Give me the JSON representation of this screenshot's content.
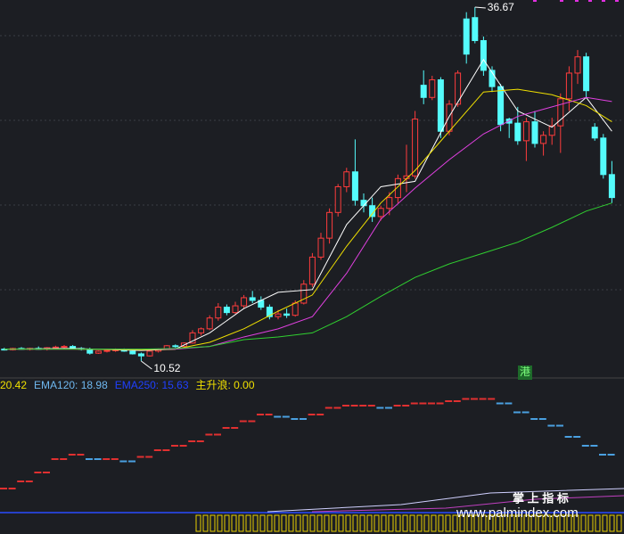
{
  "chart_data": {
    "type": "candlestick",
    "ylim": [
      9.53,
      37.2
    ],
    "ohlc": [
      [
        11.4,
        11.5,
        11.3,
        11.35
      ],
      [
        11.35,
        11.5,
        11.3,
        11.45
      ],
      [
        11.45,
        11.55,
        11.35,
        11.4
      ],
      [
        11.4,
        11.5,
        11.3,
        11.45
      ],
      [
        11.45,
        11.6,
        11.35,
        11.4
      ],
      [
        11.4,
        11.55,
        11.3,
        11.5
      ],
      [
        11.5,
        11.65,
        11.4,
        11.55
      ],
      [
        11.55,
        11.7,
        11.45,
        11.6
      ],
      [
        11.6,
        11.7,
        11.4,
        11.45
      ],
      [
        11.45,
        11.55,
        11.3,
        11.4
      ],
      [
        11.4,
        11.5,
        11.0,
        11.1
      ],
      [
        11.1,
        11.3,
        11.05,
        11.25
      ],
      [
        11.25,
        11.4,
        11.15,
        11.3
      ],
      [
        11.3,
        11.45,
        11.2,
        11.35
      ],
      [
        11.35,
        11.45,
        11.2,
        11.25
      ],
      [
        11.25,
        11.3,
        11.0,
        11.05
      ],
      [
        11.05,
        11.15,
        10.52,
        10.9
      ],
      [
        10.9,
        11.3,
        10.85,
        11.25
      ],
      [
        11.25,
        11.45,
        11.15,
        11.4
      ],
      [
        11.4,
        11.7,
        11.35,
        11.65
      ],
      [
        11.65,
        11.75,
        11.5,
        11.6
      ],
      [
        11.6,
        11.9,
        11.55,
        11.85
      ],
      [
        11.85,
        12.8,
        11.8,
        12.6
      ],
      [
        12.6,
        13.0,
        12.4,
        12.9
      ],
      [
        12.9,
        13.9,
        12.8,
        13.7
      ],
      [
        13.7,
        14.8,
        13.5,
        14.5
      ],
      [
        14.5,
        14.7,
        13.9,
        14.1
      ],
      [
        14.1,
        14.9,
        14.0,
        14.6
      ],
      [
        14.6,
        15.4,
        14.4,
        15.2
      ],
      [
        15.2,
        15.7,
        14.8,
        15.0
      ],
      [
        15.0,
        15.3,
        14.3,
        14.5
      ],
      [
        14.5,
        14.7,
        13.6,
        13.8
      ],
      [
        13.8,
        14.3,
        13.6,
        14.0
      ],
      [
        14.0,
        14.4,
        13.7,
        13.9
      ],
      [
        13.9,
        15.0,
        13.8,
        14.8
      ],
      [
        14.8,
        16.5,
        14.7,
        16.2
      ],
      [
        16.2,
        18.5,
        16.0,
        18.2
      ],
      [
        18.2,
        20.0,
        18.0,
        19.6
      ],
      [
        19.6,
        21.8,
        19.2,
        21.5
      ],
      [
        21.5,
        23.6,
        21.2,
        23.4
      ],
      [
        23.4,
        24.8,
        23.0,
        24.5
      ],
      [
        24.5,
        26.9,
        22.0,
        22.4
      ],
      [
        22.4,
        22.9,
        21.5,
        22.0
      ],
      [
        22.0,
        22.6,
        20.8,
        21.2
      ],
      [
        21.2,
        22.0,
        20.9,
        21.8
      ],
      [
        21.8,
        23.0,
        21.3,
        22.6
      ],
      [
        22.6,
        24.3,
        22.2,
        24.0
      ],
      [
        24.0,
        26.5,
        23.0,
        24.2
      ],
      [
        24.2,
        29.0,
        24.0,
        28.4
      ],
      [
        30.9,
        32.0,
        29.5,
        30.0
      ],
      [
        30.0,
        31.6,
        29.8,
        31.3
      ],
      [
        31.3,
        31.5,
        27.0,
        27.5
      ],
      [
        27.5,
        29.8,
        27.2,
        29.5
      ],
      [
        29.5,
        32.0,
        29.3,
        31.8
      ],
      [
        35.8,
        36.3,
        32.5,
        33.2
      ],
      [
        35.9,
        36.67,
        34.0,
        34.2
      ],
      [
        34.2,
        34.5,
        31.6,
        32.0
      ],
      [
        32.0,
        32.3,
        30.4,
        30.8
      ],
      [
        30.8,
        31.0,
        27.5,
        28.0
      ],
      [
        28.4,
        28.5,
        27.0,
        28.1
      ],
      [
        28.1,
        29.3,
        26.5,
        26.8
      ],
      [
        26.8,
        28.5,
        25.3,
        28.2
      ],
      [
        28.2,
        29.0,
        26.3,
        26.6
      ],
      [
        26.6,
        27.5,
        25.7,
        27.2
      ],
      [
        27.2,
        28.5,
        26.5,
        27.9
      ],
      [
        27.9,
        30.3,
        25.9,
        29.9
      ],
      [
        29.9,
        32.3,
        29.0,
        31.8
      ],
      [
        31.8,
        33.5,
        31.0,
        33.0
      ],
      [
        33.0,
        33.3,
        30.0,
        30.5
      ],
      [
        27.8,
        28.1,
        26.8,
        27.0
      ],
      [
        27.0,
        27.3,
        24.0,
        24.3
      ],
      [
        24.3,
        25.3,
        22.2,
        22.6
      ]
    ],
    "up_color": "#ff3c3c",
    "down_color": "#54fcfc",
    "ma_x": [
      0,
      8,
      16,
      20,
      24,
      28,
      32,
      36,
      40,
      44,
      48,
      52,
      56,
      60,
      64,
      68,
      71
    ],
    "series": [
      {
        "color": "#ffffff",
        "values": [
          11.4,
          11.45,
          11.3,
          11.4,
          12.6,
          14.4,
          15.6,
          15.8,
          20.6,
          23.4,
          23.8,
          28.6,
          32.8,
          29.0,
          27.8,
          30.0,
          27.5
        ]
      },
      {
        "color": "#f0e000",
        "values": [
          11.4,
          11.4,
          11.35,
          11.4,
          11.9,
          12.9,
          14.2,
          15.4,
          19.0,
          22.2,
          24.6,
          27.5,
          30.4,
          30.6,
          30.2,
          29.4,
          28.2
        ]
      },
      {
        "color": "#e040e0",
        "values": [
          11.4,
          11.4,
          11.4,
          11.4,
          11.6,
          12.3,
          12.9,
          13.8,
          17.0,
          21.0,
          23.3,
          25.4,
          27.3,
          28.6,
          29.3,
          30.0,
          29.7
        ]
      },
      {
        "color": "#30d030",
        "values": [
          11.4,
          11.4,
          11.4,
          11.45,
          11.6,
          12.1,
          12.3,
          12.6,
          13.8,
          15.3,
          16.7,
          17.7,
          18.5,
          19.3,
          20.4,
          21.6,
          22.2
        ]
      }
    ],
    "annotations": [
      36.67,
      10.52
    ],
    "badge": "港",
    "header": [
      {
        "text": "20.42",
        "color": "#f0e000"
      },
      {
        "text": "EMA120: 18.98",
        "color": "#6fb8f0"
      },
      {
        "text": "EMA250: 15.63",
        "color": "#2040ff"
      },
      {
        "text": "主升浪: 0.00",
        "color": "#f0e000"
      }
    ],
    "indicator": {
      "ylim": [
        0,
        100
      ],
      "up_color": "#e03030",
      "down_color": "#4aa0e0",
      "values": [
        17.6,
        24,
        32,
        44,
        48,
        44,
        44,
        42,
        46,
        52,
        56,
        60,
        66,
        72,
        78,
        84,
        82,
        80,
        84,
        90,
        92,
        92,
        90,
        92,
        94,
        94,
        96,
        98,
        98,
        94,
        86,
        80,
        74,
        64,
        56,
        48
      ]
    },
    "watermark": [
      "掌 上 指 标",
      "www.palmindex.com"
    ]
  }
}
